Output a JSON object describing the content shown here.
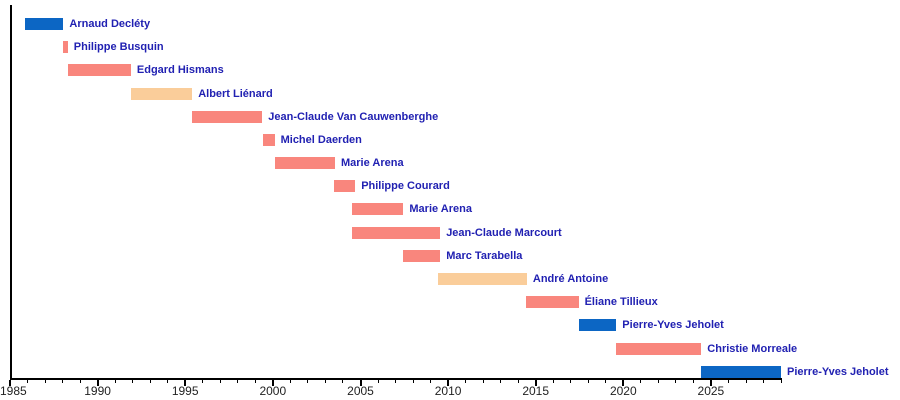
{
  "page": {
    "background": "#FFFFFF"
  },
  "chart_data": {
    "type": "bar",
    "subtype": "horizontal-gantt-timeline",
    "title": "",
    "xlabel": "",
    "ylabel": "",
    "xlim": [
      1985,
      2029
    ],
    "grid": false,
    "legend": null,
    "x_major_ticks": [
      1985,
      1990,
      1995,
      2000,
      2005,
      2010,
      2015,
      2020,
      2025
    ],
    "x_major_tick_labels": [
      "1985",
      "1990",
      "1995",
      "2000",
      "2005",
      "2010",
      "2015",
      "2020",
      "2025"
    ],
    "x_minor_tick_step": 1,
    "bars": [
      {
        "label": "Arnaud Decléty",
        "start": 1985.85,
        "end": 1988.05,
        "color": "blue"
      },
      {
        "label": "Philippe Busquin",
        "start": 1988.05,
        "end": 1988.3,
        "color": "pink"
      },
      {
        "label": "Edgard Hismans",
        "start": 1988.3,
        "end": 1991.9,
        "color": "pink"
      },
      {
        "label": "Albert Liénard",
        "start": 1991.9,
        "end": 1995.4,
        "color": "peach"
      },
      {
        "label": "Jean-Claude Van Cauwenberghe",
        "start": 1995.4,
        "end": 1999.4,
        "color": "pink"
      },
      {
        "label": "Michel Daerden",
        "start": 1999.45,
        "end": 2000.1,
        "color": "pink"
      },
      {
        "label": "Marie Arena",
        "start": 2000.1,
        "end": 2003.55,
        "color": "pink"
      },
      {
        "label": "Philippe Courard",
        "start": 2003.5,
        "end": 2004.7,
        "color": "pink"
      },
      {
        "label": "Marie Arena",
        "start": 2004.5,
        "end": 2007.45,
        "color": "pink"
      },
      {
        "label": "Jean-Claude Marcourt",
        "start": 2004.5,
        "end": 2009.55,
        "color": "pink"
      },
      {
        "label": "Marc Tarabella",
        "start": 2007.4,
        "end": 2009.55,
        "color": "pink"
      },
      {
        "label": "André Antoine",
        "start": 2009.45,
        "end": 2014.5,
        "color": "peach"
      },
      {
        "label": "Éliane Tillieux",
        "start": 2014.45,
        "end": 2017.45,
        "color": "pink"
      },
      {
        "label": "Pierre-Yves Jeholet",
        "start": 2017.45,
        "end": 2019.6,
        "color": "blue"
      },
      {
        "label": "Christie Morreale",
        "start": 2019.6,
        "end": 2024.45,
        "color": "pink"
      },
      {
        "label": "Pierre-Yves Jeholet",
        "start": 2024.45,
        "end": 2029.0,
        "color": "blue"
      }
    ],
    "colors": {
      "blue": "#0C66C4",
      "pink": "#F9867D",
      "peach": "#FACD9A",
      "bar_label_text": "#2121B2",
      "axis": "#000000",
      "tick_label_text": "#222222"
    }
  }
}
